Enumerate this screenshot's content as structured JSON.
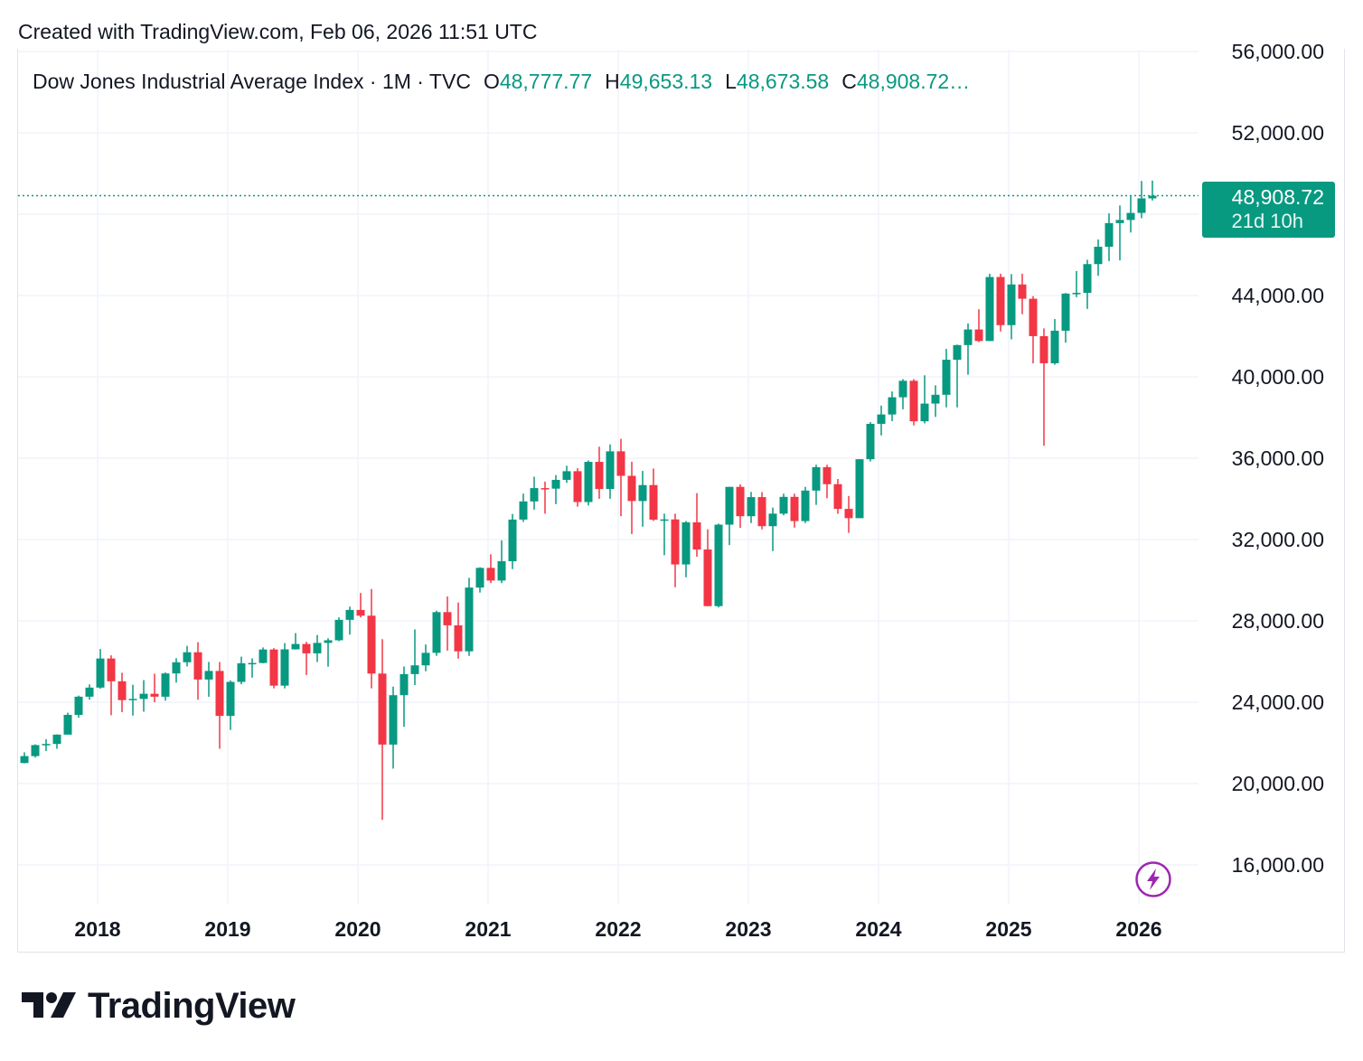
{
  "header": {
    "created_text": "Created with TradingView.com, Feb 06, 2026 11:51 UTC"
  },
  "legend": {
    "title": "Dow Jones Industrial Average Index · 1M · TVC",
    "open_label": "O",
    "open_value": "48,777.77",
    "high_label": "H",
    "high_value": "49,653.13",
    "low_label": "L",
    "low_value": "48,673.58",
    "close_label": "C",
    "close_value": "48,908.72…"
  },
  "price_tag": {
    "price": "48,908.72",
    "countdown": "21d 10h"
  },
  "brand": {
    "logo_text": "TradingView",
    "logo_icon": "tradingview-logo-icon"
  },
  "icons": {
    "lightning": "lightning-icon"
  },
  "colors": {
    "up": "#089981",
    "down": "#f23645",
    "grid": "#f0f3fa",
    "price_line": "#089981",
    "lightning": "#9c27b0"
  },
  "chart_data": {
    "type": "candlestick",
    "interval": "1M",
    "ylim": [
      14500,
      56000
    ],
    "y_ticks": [
      "56,000.00",
      "52,000.00",
      "48,000.00",
      "44,000.00",
      "40,000.00",
      "36,000.00",
      "32,000.00",
      "28,000.00",
      "24,000.00",
      "20,000.00",
      "16,000.00"
    ],
    "y_tick_values": [
      56000,
      52000,
      48000,
      44000,
      40000,
      36000,
      32000,
      28000,
      24000,
      20000,
      16000
    ],
    "x_ticks": [
      "2018",
      "2019",
      "2020",
      "2021",
      "2022",
      "2023",
      "2024",
      "2025",
      "2026"
    ],
    "x_tick_dates": [
      "2018-01",
      "2019-01",
      "2020-01",
      "2021-01",
      "2022-01",
      "2023-01",
      "2024-01",
      "2025-01",
      "2026-01"
    ],
    "grid": true,
    "last_price": 48908.72,
    "candles": [
      {
        "date": "2017-06",
        "o": 21009,
        "h": 21535,
        "l": 20993,
        "c": 21350
      },
      {
        "date": "2017-07",
        "o": 21350,
        "h": 21929,
        "l": 21279,
        "c": 21891
      },
      {
        "date": "2017-08",
        "o": 21891,
        "h": 22179,
        "l": 21600,
        "c": 21948
      },
      {
        "date": "2017-09",
        "o": 21948,
        "h": 22419,
        "l": 21709,
        "c": 22405
      },
      {
        "date": "2017-10",
        "o": 22405,
        "h": 23485,
        "l": 22416,
        "c": 23377
      },
      {
        "date": "2017-11",
        "o": 23377,
        "h": 24327,
        "l": 23242,
        "c": 24272
      },
      {
        "date": "2017-12",
        "o": 24272,
        "h": 24876,
        "l": 24124,
        "c": 24719
      },
      {
        "date": "2018-01",
        "o": 24719,
        "h": 26617,
        "l": 24660,
        "c": 26149
      },
      {
        "date": "2018-02",
        "o": 26149,
        "h": 26307,
        "l": 23360,
        "c": 25029
      },
      {
        "date": "2018-03",
        "o": 25029,
        "h": 25450,
        "l": 23509,
        "c": 24103
      },
      {
        "date": "2018-04",
        "o": 24103,
        "h": 24858,
        "l": 23344,
        "c": 24163
      },
      {
        "date": "2018-05",
        "o": 24163,
        "h": 25087,
        "l": 23532,
        "c": 24416
      },
      {
        "date": "2018-06",
        "o": 24416,
        "h": 25402,
        "l": 23997,
        "c": 24271
      },
      {
        "date": "2018-07",
        "o": 24271,
        "h": 25462,
        "l": 24077,
        "c": 25415
      },
      {
        "date": "2018-08",
        "o": 25415,
        "h": 26167,
        "l": 24965,
        "c": 25965
      },
      {
        "date": "2018-09",
        "o": 25965,
        "h": 26769,
        "l": 25760,
        "c": 26458
      },
      {
        "date": "2018-10",
        "o": 26458,
        "h": 26951,
        "l": 24122,
        "c": 25116
      },
      {
        "date": "2018-11",
        "o": 25116,
        "h": 25980,
        "l": 24268,
        "c": 25538
      },
      {
        "date": "2018-12",
        "o": 25538,
        "h": 25980,
        "l": 21713,
        "c": 23327
      },
      {
        "date": "2019-01",
        "o": 23327,
        "h": 25075,
        "l": 22638,
        "c": 24999
      },
      {
        "date": "2019-02",
        "o": 24999,
        "h": 26241,
        "l": 24883,
        "c": 25916
      },
      {
        "date": "2019-03",
        "o": 25916,
        "h": 26155,
        "l": 25208,
        "c": 25929
      },
      {
        "date": "2019-04",
        "o": 25929,
        "h": 26696,
        "l": 25915,
        "c": 26593
      },
      {
        "date": "2019-05",
        "o": 26593,
        "h": 26660,
        "l": 24680,
        "c": 24815
      },
      {
        "date": "2019-06",
        "o": 24815,
        "h": 26908,
        "l": 24680,
        "c": 26600
      },
      {
        "date": "2019-07",
        "o": 26600,
        "h": 27398,
        "l": 26588,
        "c": 26864
      },
      {
        "date": "2019-08",
        "o": 26864,
        "h": 26970,
        "l": 25340,
        "c": 26403
      },
      {
        "date": "2019-09",
        "o": 26403,
        "h": 27306,
        "l": 25978,
        "c": 26917
      },
      {
        "date": "2019-10",
        "o": 26917,
        "h": 27150,
        "l": 25744,
        "c": 27046
      },
      {
        "date": "2019-11",
        "o": 27046,
        "h": 28175,
        "l": 27000,
        "c": 28051
      },
      {
        "date": "2019-12",
        "o": 28051,
        "h": 28702,
        "l": 27325,
        "c": 28538
      },
      {
        "date": "2020-01",
        "o": 28538,
        "h": 29374,
        "l": 28170,
        "c": 28256
      },
      {
        "date": "2020-02",
        "o": 28256,
        "h": 29568,
        "l": 24681,
        "c": 25409
      },
      {
        "date": "2020-03",
        "o": 25409,
        "h": 27102,
        "l": 18214,
        "c": 21917
      },
      {
        "date": "2020-04",
        "o": 21917,
        "h": 24765,
        "l": 20736,
        "c": 24346
      },
      {
        "date": "2020-05",
        "o": 24346,
        "h": 25758,
        "l": 22790,
        "c": 25383
      },
      {
        "date": "2020-06",
        "o": 25383,
        "h": 27580,
        "l": 24843,
        "c": 25813
      },
      {
        "date": "2020-07",
        "o": 25813,
        "h": 26838,
        "l": 25523,
        "c": 26428
      },
      {
        "date": "2020-08",
        "o": 26428,
        "h": 28502,
        "l": 26281,
        "c": 28430
      },
      {
        "date": "2020-09",
        "o": 28430,
        "h": 29199,
        "l": 26537,
        "c": 27782
      },
      {
        "date": "2020-10",
        "o": 27782,
        "h": 28903,
        "l": 26143,
        "c": 26502
      },
      {
        "date": "2020-11",
        "o": 26502,
        "h": 30116,
        "l": 26277,
        "c": 29638
      },
      {
        "date": "2020-12",
        "o": 29638,
        "h": 30637,
        "l": 29393,
        "c": 30606
      },
      {
        "date": "2021-01",
        "o": 30606,
        "h": 31272,
        "l": 29857,
        "c": 29983
      },
      {
        "date": "2021-02",
        "o": 29983,
        "h": 31961,
        "l": 29856,
        "c": 30932
      },
      {
        "date": "2021-03",
        "o": 30932,
        "h": 33259,
        "l": 30548,
        "c": 32982
      },
      {
        "date": "2021-04",
        "o": 32982,
        "h": 34257,
        "l": 32867,
        "c": 33875
      },
      {
        "date": "2021-05",
        "o": 33875,
        "h": 35091,
        "l": 33473,
        "c": 34529
      },
      {
        "date": "2021-06",
        "o": 34529,
        "h": 34849,
        "l": 33271,
        "c": 34503
      },
      {
        "date": "2021-07",
        "o": 34503,
        "h": 35171,
        "l": 33742,
        "c": 34935
      },
      {
        "date": "2021-08",
        "o": 34935,
        "h": 35631,
        "l": 34785,
        "c": 35361
      },
      {
        "date": "2021-09",
        "o": 35361,
        "h": 35510,
        "l": 33613,
        "c": 33844
      },
      {
        "date": "2021-10",
        "o": 33844,
        "h": 35892,
        "l": 33676,
        "c": 35820
      },
      {
        "date": "2021-11",
        "o": 35820,
        "h": 36566,
        "l": 34006,
        "c": 34484
      },
      {
        "date": "2021-12",
        "o": 34484,
        "h": 36679,
        "l": 34006,
        "c": 36338
      },
      {
        "date": "2022-01",
        "o": 36338,
        "h": 36953,
        "l": 33150,
        "c": 35132
      },
      {
        "date": "2022-02",
        "o": 35132,
        "h": 35824,
        "l": 32272,
        "c": 33893
      },
      {
        "date": "2022-03",
        "o": 33893,
        "h": 35372,
        "l": 32632,
        "c": 34678
      },
      {
        "date": "2022-04",
        "o": 34678,
        "h": 35492,
        "l": 32913,
        "c": 32977
      },
      {
        "date": "2022-05",
        "o": 32977,
        "h": 33273,
        "l": 31228,
        "c": 32990
      },
      {
        "date": "2022-06",
        "o": 32990,
        "h": 33273,
        "l": 29653,
        "c": 30775
      },
      {
        "date": "2022-07",
        "o": 30775,
        "h": 32911,
        "l": 30143,
        "c": 32845
      },
      {
        "date": "2022-08",
        "o": 32845,
        "h": 34281,
        "l": 31155,
        "c": 31510
      },
      {
        "date": "2022-09",
        "o": 31510,
        "h": 32505,
        "l": 28716,
        "c": 28726
      },
      {
        "date": "2022-10",
        "o": 28726,
        "h": 32784,
        "l": 28661,
        "c": 32732
      },
      {
        "date": "2022-11",
        "o": 32732,
        "h": 34589,
        "l": 31727,
        "c": 34590
      },
      {
        "date": "2022-12",
        "o": 34590,
        "h": 34712,
        "l": 32573,
        "c": 33147
      },
      {
        "date": "2023-01",
        "o": 33147,
        "h": 34342,
        "l": 32812,
        "c": 34086
      },
      {
        "date": "2023-02",
        "o": 34086,
        "h": 34334,
        "l": 32500,
        "c": 32657
      },
      {
        "date": "2023-03",
        "o": 32657,
        "h": 33572,
        "l": 31429,
        "c": 33274
      },
      {
        "date": "2023-04",
        "o": 33274,
        "h": 34257,
        "l": 33192,
        "c": 34098
      },
      {
        "date": "2023-05",
        "o": 34098,
        "h": 34257,
        "l": 32586,
        "c": 32908
      },
      {
        "date": "2023-06",
        "o": 32908,
        "h": 34589,
        "l": 32811,
        "c": 34408
      },
      {
        "date": "2023-07",
        "o": 34408,
        "h": 35679,
        "l": 33705,
        "c": 35560
      },
      {
        "date": "2023-08",
        "o": 35560,
        "h": 35679,
        "l": 34029,
        "c": 34722
      },
      {
        "date": "2023-09",
        "o": 34722,
        "h": 34979,
        "l": 33265,
        "c": 33507
      },
      {
        "date": "2023-10",
        "o": 33507,
        "h": 34142,
        "l": 32327,
        "c": 33052
      },
      {
        "date": "2023-11",
        "o": 33052,
        "h": 35954,
        "l": 33052,
        "c": 35950
      },
      {
        "date": "2023-12",
        "o": 35950,
        "h": 37778,
        "l": 35838,
        "c": 37690
      },
      {
        "date": "2024-01",
        "o": 37690,
        "h": 38588,
        "l": 37122,
        "c": 38150
      },
      {
        "date": "2024-02",
        "o": 38150,
        "h": 39282,
        "l": 37825,
        "c": 38996
      },
      {
        "date": "2024-03",
        "o": 38996,
        "h": 39889,
        "l": 38403,
        "c": 39807
      },
      {
        "date": "2024-04",
        "o": 39807,
        "h": 39889,
        "l": 37611,
        "c": 37816
      },
      {
        "date": "2024-05",
        "o": 37816,
        "h": 40077,
        "l": 37711,
        "c": 38686
      },
      {
        "date": "2024-06",
        "o": 38686,
        "h": 39584,
        "l": 38031,
        "c": 39119
      },
      {
        "date": "2024-07",
        "o": 39119,
        "h": 41376,
        "l": 38499,
        "c": 40842
      },
      {
        "date": "2024-08",
        "o": 40842,
        "h": 41585,
        "l": 38499,
        "c": 41563
      },
      {
        "date": "2024-09",
        "o": 41563,
        "h": 42628,
        "l": 40103,
        "c": 42330
      },
      {
        "date": "2024-10",
        "o": 42330,
        "h": 43325,
        "l": 41709,
        "c": 41763
      },
      {
        "date": "2024-11",
        "o": 41763,
        "h": 45071,
        "l": 41763,
        "c": 44910
      },
      {
        "date": "2024-12",
        "o": 44910,
        "h": 45074,
        "l": 42232,
        "c": 42544
      },
      {
        "date": "2025-01",
        "o": 42544,
        "h": 45054,
        "l": 41844,
        "c": 44544
      },
      {
        "date": "2025-02",
        "o": 44544,
        "h": 45073,
        "l": 43082,
        "c": 43841
      },
      {
        "date": "2025-03",
        "o": 43841,
        "h": 43968,
        "l": 40661,
        "c": 42002
      },
      {
        "date": "2025-04",
        "o": 42002,
        "h": 42384,
        "l": 36612,
        "c": 40669
      },
      {
        "date": "2025-05",
        "o": 40669,
        "h": 42842,
        "l": 40599,
        "c": 42270
      },
      {
        "date": "2025-06",
        "o": 42270,
        "h": 44126,
        "l": 41682,
        "c": 44095
      },
      {
        "date": "2025-07",
        "o": 44095,
        "h": 45206,
        "l": 43919,
        "c": 44131
      },
      {
        "date": "2025-08",
        "o": 44131,
        "h": 45758,
        "l": 43341,
        "c": 45545
      },
      {
        "date": "2025-09",
        "o": 45545,
        "h": 46758,
        "l": 44970,
        "c": 46398
      },
      {
        "date": "2025-10",
        "o": 46398,
        "h": 48040,
        "l": 45690,
        "c": 47563
      },
      {
        "date": "2025-11",
        "o": 47563,
        "h": 48431,
        "l": 45728,
        "c": 47716
      },
      {
        "date": "2025-12",
        "o": 47716,
        "h": 48886,
        "l": 47100,
        "c": 48063
      },
      {
        "date": "2026-01",
        "o": 48063,
        "h": 49633,
        "l": 47800,
        "c": 48778
      },
      {
        "date": "2026-02",
        "o": 48777.77,
        "h": 49653.13,
        "l": 48673.58,
        "c": 48908.72
      }
    ]
  }
}
